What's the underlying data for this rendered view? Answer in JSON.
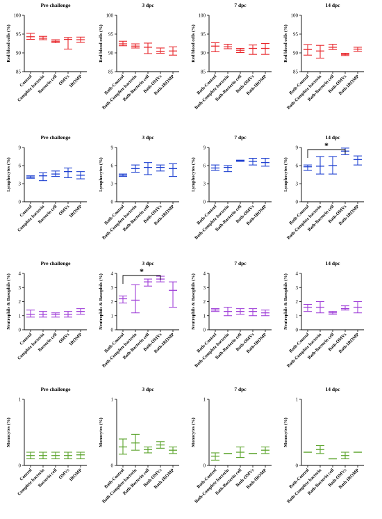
{
  "chart_data": [
    {
      "type": "errorbar",
      "title": "Pre challenge",
      "ylabel": "Red blood cells (%)",
      "ylim": [
        85,
        100
      ],
      "yticks": [
        85,
        90,
        95,
        100
      ],
      "color": "#e8262b",
      "categories": [
        "Control",
        "Complete bacterin",
        "Bacterin cell",
        "OMVs",
        "IROMP"
      ],
      "mean": [
        94.3,
        93.9,
        93.1,
        93.6,
        93.5
      ],
      "upper": [
        95.2,
        94.4,
        93.5,
        94.1,
        94.2
      ],
      "lower": [
        93.6,
        93.5,
        92.7,
        91.0,
        92.8
      ]
    },
    {
      "type": "errorbar",
      "title": "3 dpc",
      "ylabel": "Red blood cells (%)",
      "ylim": [
        85,
        100
      ],
      "yticks": [
        85,
        90,
        95,
        100
      ],
      "color": "#e8262b",
      "categories": [
        "Bath-Control",
        "Bath-Complete bacterin",
        "Bath-Bacterin cell",
        "Bath-OMVs",
        "Bath-IROMP"
      ],
      "mean": [
        92.4,
        91.8,
        91.5,
        90.4,
        90.5
      ],
      "upper": [
        93.1,
        92.4,
        92.6,
        91.3,
        91.6
      ],
      "lower": [
        91.9,
        91.3,
        89.8,
        89.9,
        89.4
      ]
    },
    {
      "type": "errorbar",
      "title": "7 dpc",
      "ylabel": "Red blood cells (%)",
      "ylim": [
        85,
        100
      ],
      "yticks": [
        85,
        90,
        95,
        100
      ],
      "color": "#e8262b",
      "categories": [
        "Bath-Control",
        "Bath-Complete bacterin",
        "Bath-Bacterin cell",
        "Bath-OMVs",
        "Bath-IROMP"
      ],
      "mean": [
        91.8,
        91.6,
        90.7,
        91.2,
        91.2
      ],
      "upper": [
        92.7,
        92.3,
        91.2,
        92.1,
        92.5
      ],
      "lower": [
        90.3,
        91.1,
        90.1,
        89.6,
        89.6
      ]
    },
    {
      "type": "errorbar",
      "title": "14 dpc",
      "ylabel": "Red blood cells (%)",
      "ylim": [
        85,
        100
      ],
      "yticks": [
        85,
        90,
        95,
        100
      ],
      "color": "#e8262b",
      "categories": [
        "Bath-Control",
        "Bath-Complete bacterin",
        "Bath-Bacterin cell",
        "Bath-OMVs",
        "Bath-IROMP"
      ],
      "mean": [
        90.9,
        90.5,
        91.5,
        89.6,
        91.0
      ],
      "upper": [
        92.2,
        92.0,
        92.3,
        89.9,
        91.5
      ],
      "lower": [
        89.4,
        88.6,
        90.9,
        89.3,
        90.4
      ]
    },
    {
      "type": "errorbar",
      "title": "Pre challenge",
      "ylabel": "Lymphocytes (%)",
      "ylim": [
        0,
        9
      ],
      "yticks": [
        0,
        3,
        6,
        9
      ],
      "color": "#1c3fd0",
      "categories": [
        "Control",
        "Complete bacterin",
        "Bacterin cell",
        "OMVs",
        "IROMP"
      ],
      "mean": [
        4.1,
        4.3,
        4.6,
        5.0,
        4.4
      ],
      "upper": [
        4.3,
        4.8,
        5.1,
        5.6,
        5.0
      ],
      "lower": [
        3.9,
        3.5,
        4.2,
        4.0,
        3.8
      ]
    },
    {
      "type": "errorbar",
      "title": "3 dpc",
      "ylabel": "Lymphocytes (%)",
      "ylim": [
        0,
        9
      ],
      "yticks": [
        0,
        3,
        6,
        9
      ],
      "color": "#1c3fd0",
      "categories": [
        "Bath-Control",
        "Bath-Complete bacterin",
        "Bath-Bacterin cell",
        "Bath-OMVs",
        "Bath-IROMP"
      ],
      "mean": [
        4.4,
        5.5,
        5.7,
        5.7,
        5.5
      ],
      "upper": [
        4.6,
        6.1,
        6.5,
        6.1,
        6.3
      ],
      "lower": [
        4.2,
        4.9,
        4.5,
        5.1,
        4.2
      ]
    },
    {
      "type": "errorbar",
      "title": "7 dpc",
      "ylabel": "Lymphocytes (%)",
      "ylim": [
        0,
        9
      ],
      "yticks": [
        0,
        3,
        6,
        9
      ],
      "color": "#1c3fd0",
      "categories": [
        "Bath-Control",
        "Bath-Complete bacterin",
        "Bath-Bacterin cell",
        "Bath-OMVs",
        "Bath-IROMP"
      ],
      "mean": [
        5.6,
        5.7,
        6.8,
        6.7,
        6.5
      ],
      "upper": [
        6.1,
        6.0,
        6.9,
        7.2,
        7.2
      ],
      "lower": [
        5.2,
        5.0,
        6.7,
        6.1,
        5.9
      ]
    },
    {
      "type": "errorbar",
      "title": "14 dpc",
      "ylabel": "Lymphocytes (%)",
      "ylim": [
        0,
        9
      ],
      "yticks": [
        0,
        3,
        6,
        9
      ],
      "color": "#1c3fd0",
      "categories": [
        "Bath-Control",
        "Bath-Complete bacterin",
        "Bath-Bacterin cell",
        "Bath-OMVs",
        "Bath-IROMP"
      ],
      "mean": [
        5.8,
        5.9,
        6.0,
        8.4,
        7.0
      ],
      "upper": [
        6.1,
        7.5,
        7.5,
        8.9,
        7.6
      ],
      "lower": [
        5.2,
        4.6,
        4.6,
        7.8,
        6.1
      ],
      "annotation": {
        "from": 0,
        "to": 3,
        "label": "*"
      }
    },
    {
      "type": "errorbar",
      "title": "Pre challenge",
      "ylabel": "Neutrophils & Basophils (%)",
      "ylim": [
        0,
        4
      ],
      "yticks": [
        0,
        1,
        2,
        3,
        4
      ],
      "color": "#a040d8",
      "categories": [
        "Control",
        "Complete bacterin",
        "Bacterin cell",
        "OMVs",
        "IROMP"
      ],
      "mean": [
        1.1,
        1.1,
        1.1,
        1.1,
        1.3
      ],
      "upper": [
        1.4,
        1.3,
        1.2,
        1.3,
        1.5
      ],
      "lower": [
        0.9,
        0.9,
        0.9,
        0.9,
        1.1
      ]
    },
    {
      "type": "errorbar",
      "title": "3 dpc",
      "ylabel": "Neutrophils & Basophils (%)",
      "ylim": [
        0,
        4
      ],
      "yticks": [
        0,
        1,
        2,
        3,
        4
      ],
      "color": "#a040d8",
      "categories": [
        "Bath-Control",
        "Bath-Complete bacterin",
        "Bath-Bacterin cell",
        "Bath-OMVs",
        "Bath-IROMP"
      ],
      "mean": [
        2.2,
        2.1,
        3.4,
        3.6,
        2.8
      ],
      "upper": [
        2.4,
        3.2,
        3.6,
        3.8,
        3.4
      ],
      "lower": [
        1.9,
        1.2,
        3.1,
        3.4,
        1.6
      ],
      "annotation": {
        "from": 0,
        "to": 3,
        "label": "*"
      }
    },
    {
      "type": "errorbar",
      "title": "7 dpc",
      "ylabel": "Neutrophils & Basophils (%)",
      "ylim": [
        0,
        4
      ],
      "yticks": [
        0,
        1,
        2,
        3,
        4
      ],
      "color": "#a040d8",
      "categories": [
        "Bath-Control",
        "Bath-Complete bacterin",
        "Bath-Bacterin cell",
        "Bath-OMVs",
        "Bath-IROMP"
      ],
      "mean": [
        1.4,
        1.3,
        1.3,
        1.3,
        1.2
      ],
      "upper": [
        1.5,
        1.6,
        1.5,
        1.5,
        1.4
      ],
      "lower": [
        1.3,
        1.0,
        1.1,
        1.0,
        1.0
      ]
    },
    {
      "type": "errorbar",
      "title": "14 dpc",
      "ylabel": "Neutrophils & Basophils (%)",
      "ylim": [
        0,
        4
      ],
      "yticks": [
        0,
        1,
        2,
        3,
        4
      ],
      "color": "#a040d8",
      "categories": [
        "Bath-Control",
        "Bath-Complete bacterin",
        "Bath-Bacterin cell",
        "Bath-OMVs",
        "Bath-IROMP"
      ],
      "mean": [
        1.6,
        1.6,
        1.2,
        1.5,
        1.6
      ],
      "upper": [
        1.8,
        2.0,
        1.3,
        1.7,
        2.0
      ],
      "lower": [
        1.3,
        1.2,
        1.1,
        1.4,
        1.2
      ]
    },
    {
      "type": "errorbar",
      "title": "Pre challenge",
      "ylabel": "Monocytes (%)",
      "ylim": [
        0,
        1
      ],
      "yticks": [
        0,
        1
      ],
      "color": "#5aa32a",
      "categories": [
        "Control",
        "Complete bacterin",
        "Bacterin cell",
        "OMVs",
        "IROMP"
      ],
      "mean": [
        0.15,
        0.15,
        0.15,
        0.15,
        0.16
      ],
      "upper": [
        0.2,
        0.2,
        0.2,
        0.2,
        0.2
      ],
      "lower": [
        0.1,
        0.1,
        0.1,
        0.1,
        0.1
      ]
    },
    {
      "type": "errorbar",
      "title": "3 dpc",
      "ylabel": "Monocytes (%)",
      "ylim": [
        0,
        1
      ],
      "yticks": [
        0,
        1
      ],
      "color": "#5aa32a",
      "categories": [
        "Bath-Control",
        "Bath-Complete bacterin",
        "Bath-Bacterin cell",
        "Bath-OMVs",
        "Bath-IROMP"
      ],
      "mean": [
        0.28,
        0.34,
        0.24,
        0.31,
        0.23
      ],
      "upper": [
        0.4,
        0.47,
        0.28,
        0.36,
        0.28
      ],
      "lower": [
        0.17,
        0.23,
        0.19,
        0.26,
        0.18
      ]
    },
    {
      "type": "errorbar",
      "title": "7 dpc",
      "ylabel": "Monocytes (%)",
      "ylim": [
        0,
        1
      ],
      "yticks": [
        0,
        1
      ],
      "color": "#5aa32a",
      "categories": [
        "Bath-Control",
        "Bath-Complete bacterin",
        "Bath-Bacterin cell",
        "Bath-OMVs",
        "Bath-IROMP"
      ],
      "mean": [
        0.14,
        0.18,
        0.2,
        0.18,
        0.23
      ],
      "upper": [
        0.19,
        0.18,
        0.28,
        0.18,
        0.28
      ],
      "lower": [
        0.08,
        0.18,
        0.12,
        0.18,
        0.18
      ]
    },
    {
      "type": "errorbar",
      "title": "14 dpc",
      "ylabel": "Monocytes (%)",
      "ylim": [
        0,
        1
      ],
      "yticks": [
        0,
        1
      ],
      "color": "#5aa32a",
      "categories": [
        "Bath-Control",
        "Bath-Complete bacterin",
        "Bath-Bacterin cell",
        "Bath-OMVs",
        "Bath-IROMP"
      ],
      "mean": [
        0.2,
        0.24,
        0.1,
        0.15,
        0.2
      ],
      "upper": [
        0.2,
        0.3,
        0.1,
        0.2,
        0.2
      ],
      "lower": [
        0.2,
        0.18,
        0.1,
        0.1,
        0.2
      ]
    }
  ]
}
